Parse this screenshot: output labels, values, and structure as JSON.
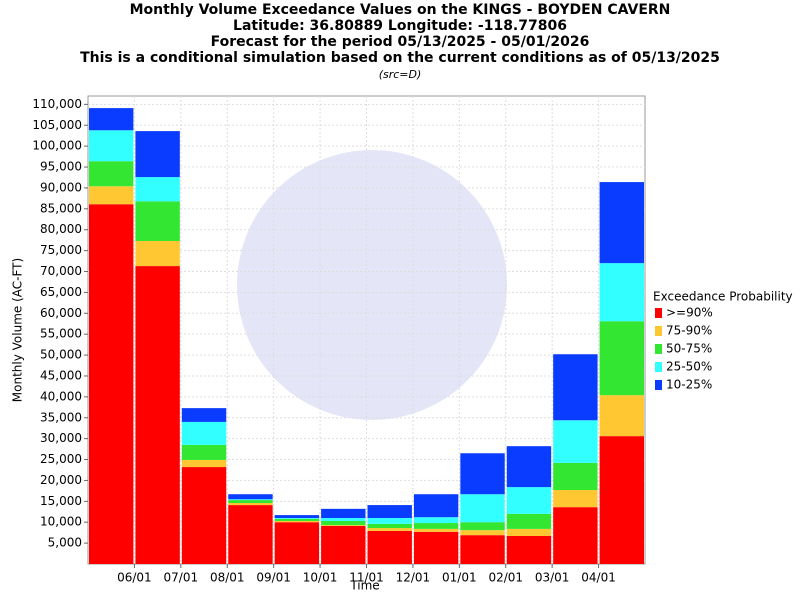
{
  "chart_data": {
    "type": "stacked-bar",
    "titles": [
      "Monthly Volume Exceedance Values on the KINGS - BOYDEN CAVERN",
      "Latitude: 36.80889 Longitude: -118.77806",
      "Forecast for the period 05/13/2025 - 05/01/2026",
      "This is a conditional simulation based on the current conditions as of 05/13/2025"
    ],
    "subtitle": "(src=D)",
    "y_label": "Monthly Volume (AC-FT)",
    "x_label": "Time",
    "legend_title": "Exceedance Probability",
    "categories": [
      null,
      null,
      null,
      null,
      null,
      null,
      null,
      null,
      null,
      null,
      null,
      null
    ],
    "xtick_labels": [
      "06/01",
      "07/01",
      "08/01",
      "09/01",
      "10/01",
      "11/01",
      "12/01",
      "01/01",
      "02/01",
      "03/01",
      "04/01"
    ],
    "series": [
      {
        "name": ">=90%",
        "color": "#ff0000",
        "values": [
          86100,
          71300,
          23200,
          14100,
          10000,
          9100,
          7900,
          7700,
          6900,
          6700,
          13600,
          30600
        ]
      },
      {
        "name": "75-90%",
        "color": "#ffc832",
        "values": [
          4300,
          6000,
          1700,
          500,
          300,
          200,
          700,
          700,
          1200,
          1700,
          4100,
          9800
        ]
      },
      {
        "name": "50-75%",
        "color": "#32e632",
        "values": [
          6000,
          9500,
          3600,
          700,
          500,
          1000,
          1000,
          1400,
          1900,
          3600,
          6500,
          17700
        ]
      },
      {
        "name": "25-50%",
        "color": "#32ffff",
        "values": [
          7400,
          5800,
          5500,
          200,
          200,
          700,
          1400,
          1400,
          6700,
          6400,
          10200,
          13900
        ]
      },
      {
        "name": "10-25%",
        "color": "#0a3cff",
        "values": [
          5300,
          11000,
          3300,
          1200,
          700,
          2200,
          3100,
          5500,
          9800,
          9800,
          15800,
          19400
        ]
      }
    ],
    "ylim": [
      0,
      112000
    ],
    "yticks": [
      {
        "value": 5000,
        "label": "5,000"
      },
      {
        "value": 10000,
        "label": "10,000"
      },
      {
        "value": 15000,
        "label": "15,000"
      },
      {
        "value": 20000,
        "label": "20,000"
      },
      {
        "value": 25000,
        "label": "25,000"
      },
      {
        "value": 30000,
        "label": "30,000"
      },
      {
        "value": 35000,
        "label": "35,000"
      },
      {
        "value": 40000,
        "label": "40,000"
      },
      {
        "value": 45000,
        "label": "45,000"
      },
      {
        "value": 50000,
        "label": "50,000"
      },
      {
        "value": 55000,
        "label": "55,000"
      },
      {
        "value": 60000,
        "label": "60,000"
      },
      {
        "value": 65000,
        "label": "65,000"
      },
      {
        "value": 70000,
        "label": "70,000"
      },
      {
        "value": 75000,
        "label": "75,000"
      },
      {
        "value": 80000,
        "label": "80,000"
      },
      {
        "value": 85000,
        "label": "85,000"
      },
      {
        "value": 90000,
        "label": "90,000"
      },
      {
        "value": 95000,
        "label": "95,000"
      },
      {
        "value": 100000,
        "label": "100,000"
      },
      {
        "value": 105000,
        "label": "105,000"
      },
      {
        "value": 110000,
        "label": "110,000"
      }
    ],
    "grid": true
  }
}
